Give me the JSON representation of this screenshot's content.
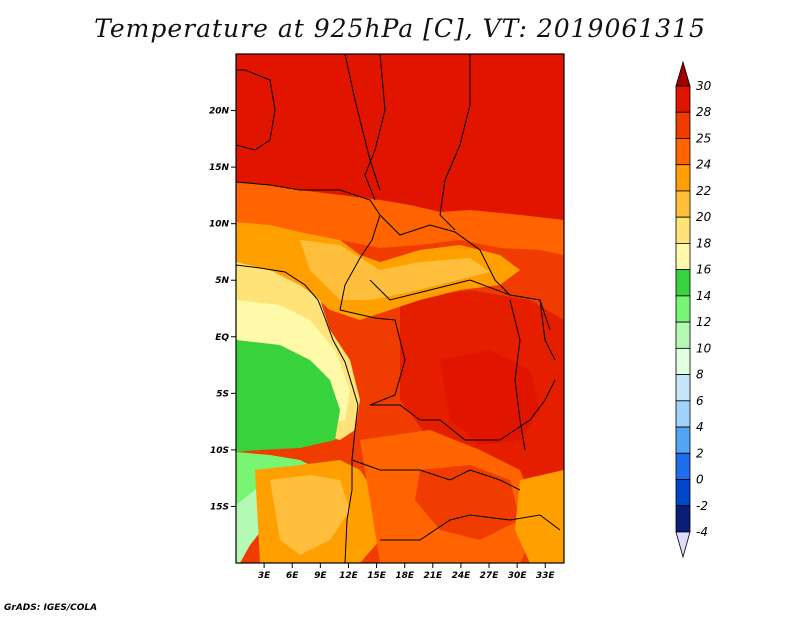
{
  "title": "Temperature at 925hPa [C], VT: 2019061315",
  "footer": "GrADS: IGES/COLA",
  "map": {
    "lon_range": [
      0,
      35
    ],
    "lat_range": [
      -20,
      25
    ],
    "lat_ticks": [
      "20N",
      "15N",
      "10N",
      "5N",
      "EQ",
      "5S",
      "10S",
      "15S"
    ],
    "lon_ticks": [
      "3E",
      "6E",
      "9E",
      "12E",
      "15E",
      "18E",
      "21E",
      "24E",
      "27E",
      "30E",
      "33E"
    ]
  },
  "colorbar": {
    "labels": [
      "30",
      "28",
      "25",
      "24",
      "22",
      "20",
      "18",
      "16",
      "14",
      "12",
      "10",
      "8",
      "6",
      "4",
      "2",
      "0",
      "-2",
      "-4"
    ],
    "colors": [
      "#a00000",
      "#e11400",
      "#f03c00",
      "#ff6400",
      "#ffa000",
      "#ffbe3c",
      "#ffe278",
      "#fffaaa",
      "#37d23c",
      "#78f573",
      "#b4fab4",
      "#e1ffe1",
      "#c8e6fa",
      "#a0d2fa",
      "#50a5f5",
      "#1e6eeb",
      "#0046c8",
      "#0a1e78",
      "#dcdcff"
    ]
  }
}
